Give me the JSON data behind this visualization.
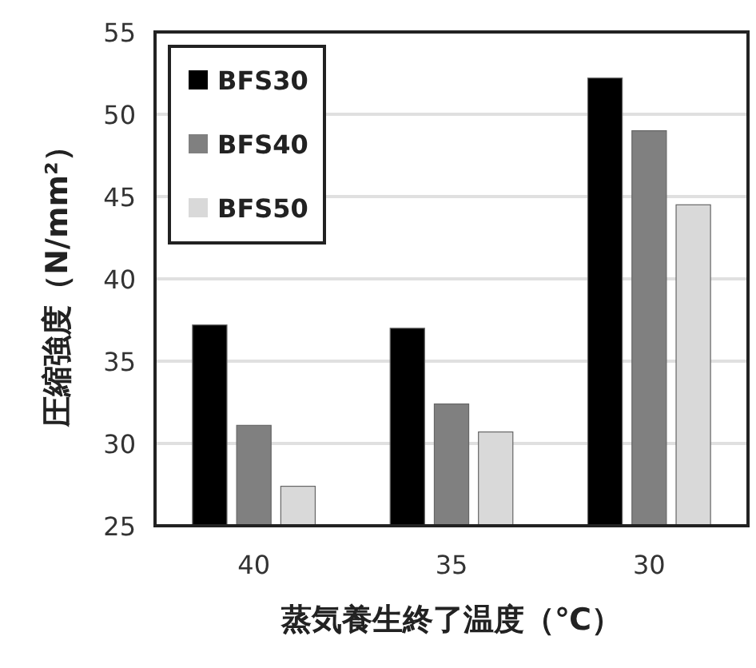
{
  "chart_data": {
    "type": "bar",
    "xlabel": "蒸気養生終了温度（℃）",
    "ylabel": "圧縮強度（N/mm²）",
    "categories": [
      "40",
      "35",
      "30"
    ],
    "series": [
      {
        "name": "BFS30",
        "color": "#000000",
        "values": [
          37.2,
          37.0,
          52.2
        ]
      },
      {
        "name": "BFS40",
        "color": "#808080",
        "values": [
          31.1,
          32.4,
          49.0
        ]
      },
      {
        "name": "BFS50",
        "color": "#d9d9d9",
        "values": [
          27.4,
          30.7,
          44.5
        ]
      }
    ],
    "ylim": [
      25,
      55
    ],
    "yticks": [
      25,
      30,
      35,
      40,
      45,
      50,
      55
    ],
    "grid": "y",
    "legend": "top left"
  }
}
